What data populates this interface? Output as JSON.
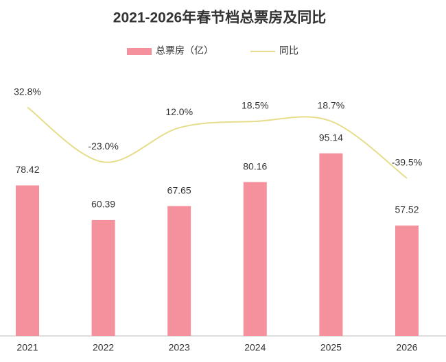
{
  "chart_data": {
    "type": "bar",
    "title": "2021-2026年春节档总票房及同比",
    "categories": [
      "2021",
      "2022",
      "2023",
      "2024",
      "2025",
      "2026"
    ],
    "ylim": [
      0,
      100
    ],
    "y2lim": [
      -50,
      50
    ],
    "legend": "top",
    "series": [
      {
        "name": "总票房（亿）",
        "type": "bar",
        "color": "#f4919c",
        "values": [
          78.42,
          60.39,
          67.65,
          80.16,
          95.14,
          57.52
        ]
      },
      {
        "name": "同比",
        "type": "line",
        "axis": "y2",
        "color": "#e6dd8c",
        "values": [
          32.8,
          -23.0,
          12.0,
          18.5,
          18.7,
          -39.5
        ],
        "value_labels": [
          "32.8%",
          "-23.0%",
          "12.0%",
          "18.5%",
          "18.7%",
          "-39.5%"
        ]
      }
    ]
  }
}
